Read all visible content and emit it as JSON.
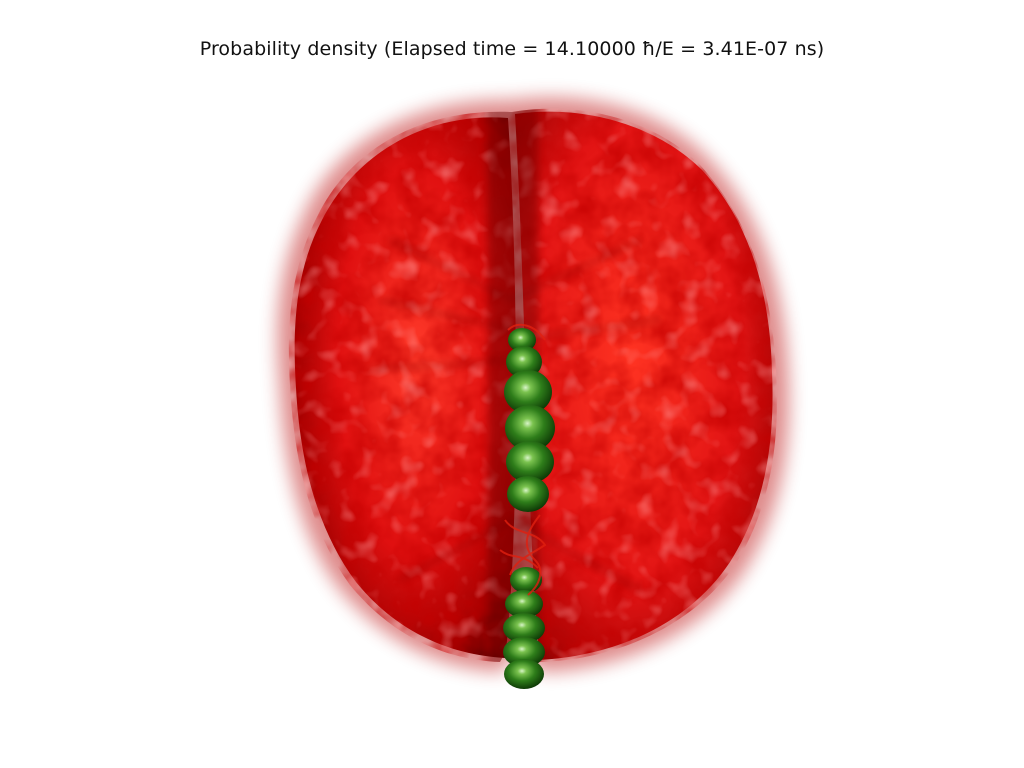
{
  "figure": {
    "title": "Probability density (Elapsed time = 14.10000 ħ/E = 3.41E-07 ns)"
  },
  "colors": {
    "background": "#ffffff",
    "density_cloud": "#e01010",
    "density_cloud_dark": "#7a0000",
    "axis_beads": "#2e7d1a",
    "axis_beads_highlight": "#cfeec0"
  },
  "scene": {
    "objects": [
      "probability-density-cloud",
      "green-bead-chain"
    ]
  }
}
